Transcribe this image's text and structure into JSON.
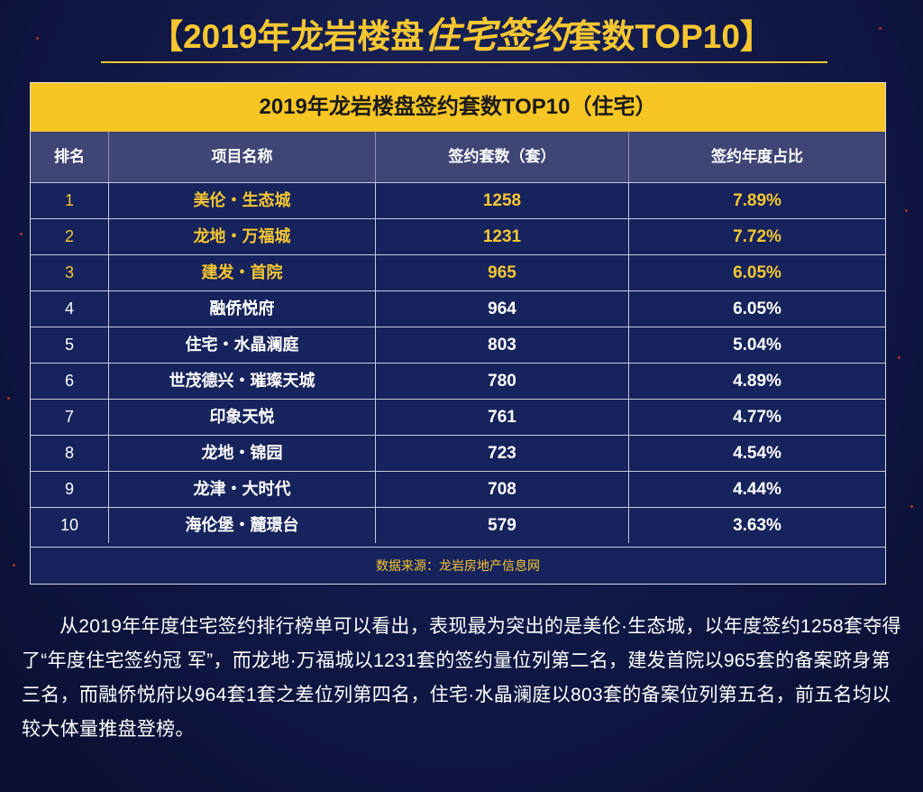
{
  "header": {
    "bracket_open": "【",
    "part1": "2019年龙岩楼盘",
    "highlight": "住宅签约",
    "part2": "套数TOP10",
    "bracket_close": "】"
  },
  "table": {
    "title": "2019年龙岩楼盘签约套数TOP10（住宅）",
    "columns": [
      "排名",
      "项目名称",
      "签约套数（套）",
      "签约年度占比"
    ],
    "rows": [
      {
        "rank": "1",
        "name": "美伦・生态城",
        "count": "1258",
        "share": "7.89%"
      },
      {
        "rank": "2",
        "name": "龙地・万福城",
        "count": "1231",
        "share": "7.72%"
      },
      {
        "rank": "3",
        "name": "建发・首院",
        "count": "965",
        "share": "6.05%"
      },
      {
        "rank": "4",
        "name": "融侨悦府",
        "count": "964",
        "share": "6.05%"
      },
      {
        "rank": "5",
        "name": "住宅・水晶澜庭",
        "count": "803",
        "share": "5.04%"
      },
      {
        "rank": "6",
        "name": "世茂德兴・璀璨天城",
        "count": "780",
        "share": "4.89%"
      },
      {
        "rank": "7",
        "name": "印象天悦",
        "count": "761",
        "share": "4.77%"
      },
      {
        "rank": "8",
        "name": "龙地・锦园",
        "count": "723",
        "share": "4.54%"
      },
      {
        "rank": "9",
        "name": "龙津・大时代",
        "count": "708",
        "share": "4.44%"
      },
      {
        "rank": "10",
        "name": "海伦堡・麓璟台",
        "count": "579",
        "share": "3.63%"
      }
    ],
    "source": "数据来源：龙岩房地产信息网"
  },
  "paragraph": "从2019年年度住宅签约排行榜单可以看出，表现最为突出的是美伦·生态城，以年度签约1258套夺得了“年度住宅签约冠 军”，而龙地·万福城以1231套的签约量位列第二名，建发首院以965套的备案跻身第三名，而融侨悦府以964套1套之差位列第四名，住宅·水晶澜庭以803套的备案位列第五名，前五名均以较大体量推盘登榜。",
  "colors": {
    "background": "#0f1744",
    "accent_yellow": "#f8c624",
    "header_row": "#3f4575",
    "highlight_text": "#f7c731"
  }
}
